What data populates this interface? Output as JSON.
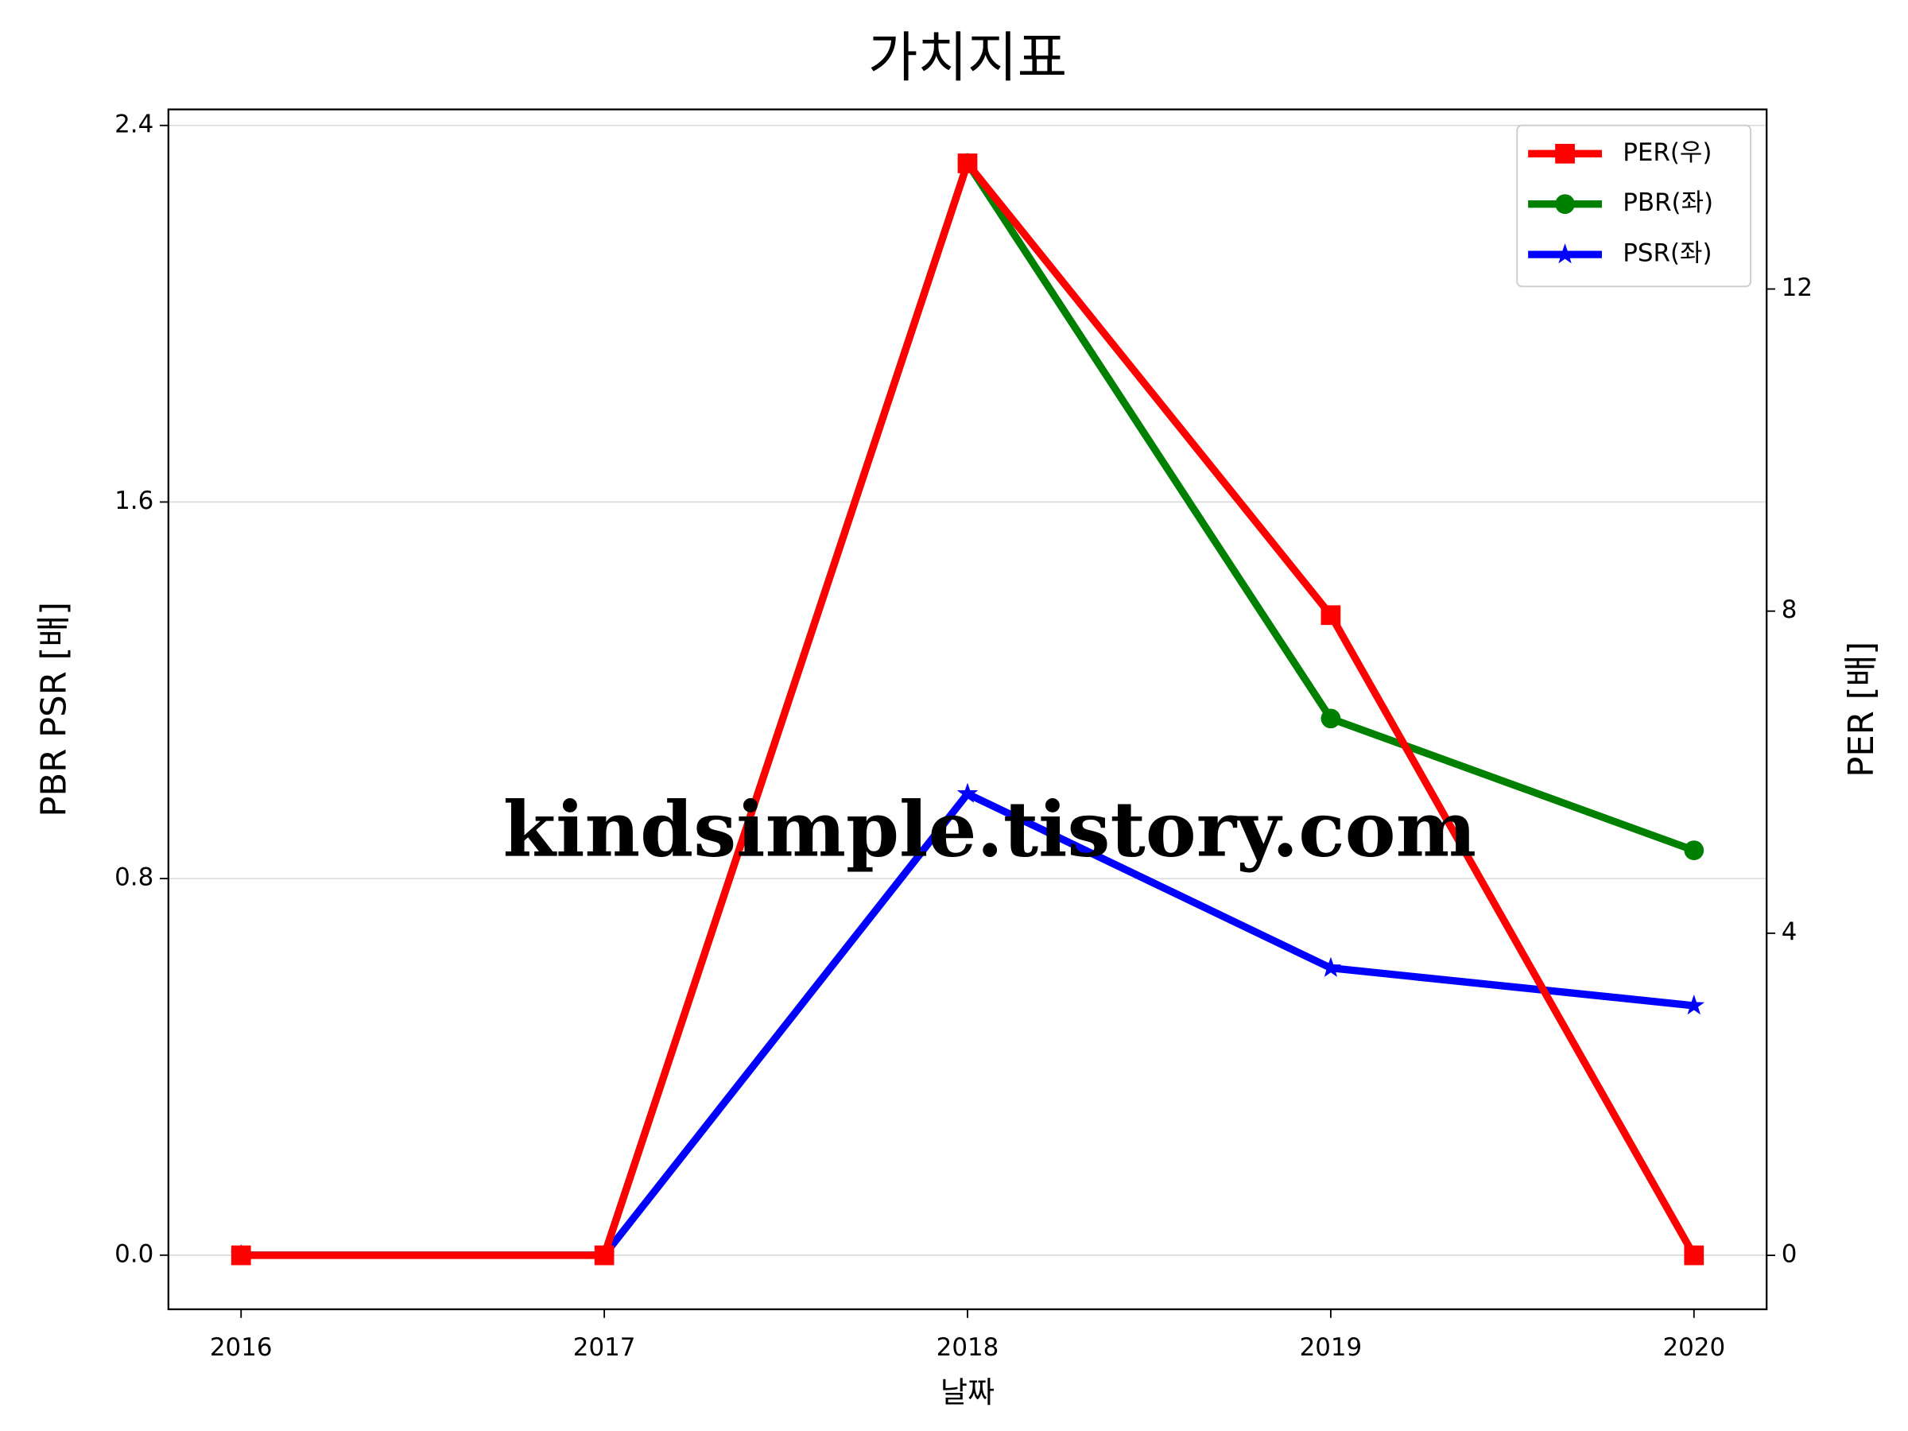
{
  "chart_data": {
    "type": "line",
    "title": "가치지표",
    "xlabel": "날짜",
    "ylabel": "PBR PSR [배]",
    "y2label": "PER [배]",
    "ylabel_color": "#008000",
    "y2label_color": "#ff0000",
    "watermark": "kindsimple.tistory.com",
    "categories": [
      "2016",
      "2017",
      "2018",
      "2019",
      "2020"
    ],
    "series": [
      {
        "name": "PER(우)",
        "color": "#ff0000",
        "marker": "square",
        "axis": "y2",
        "values": [
          0,
          0,
          13.56,
          7.95,
          0
        ]
      },
      {
        "name": "PBR(좌)",
        "color": "#008000",
        "marker": "circle",
        "values": [
          0,
          0,
          2.32,
          1.14,
          0.86
        ]
      },
      {
        "name": "PSR(좌)",
        "color": "#0000ff",
        "marker": "star",
        "values": [
          0,
          0,
          0.98,
          0.61,
          0.53
        ]
      }
    ],
    "ylim": [
      -0.115,
      2.434
    ],
    "yticks": [
      {
        "value": 0,
        "label": "0.0"
      },
      0.8,
      1.6,
      2.4
    ],
    "y2lim": [
      -0.67,
      14.23
    ],
    "y2ticks": [
      0,
      4,
      8,
      12
    ],
    "grid": true,
    "legend": "upper right"
  }
}
